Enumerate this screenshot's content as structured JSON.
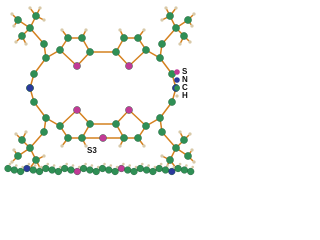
{
  "legend": {
    "items": [
      "S",
      "N",
      "C",
      "H"
    ]
  },
  "labels": {
    "atom_label": "S3"
  }
}
